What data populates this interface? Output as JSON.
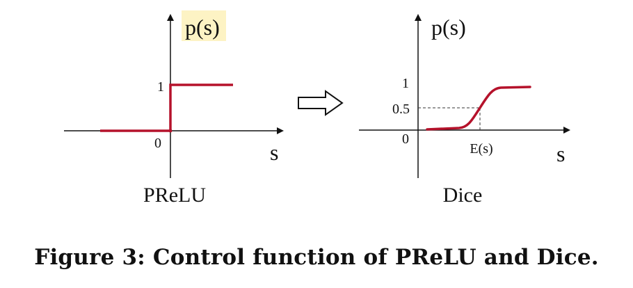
{
  "left_panel": {
    "title": "PReLU",
    "y_label": "p(s)",
    "x_label": "s",
    "tick_one": "1",
    "tick_zero": "0",
    "highlight_color": "#fdf3c4"
  },
  "right_panel": {
    "title": "Dice",
    "y_label": "p(s)",
    "x_label": "s",
    "tick_one": "1",
    "tick_half": "0.5",
    "tick_zero": "0",
    "x_mark": "E(s)"
  },
  "colors": {
    "curve": "#b5122b",
    "axis": "#111111",
    "guide": "#333333"
  },
  "caption": "Figure 3: Control function of PReLU and Dice."
}
